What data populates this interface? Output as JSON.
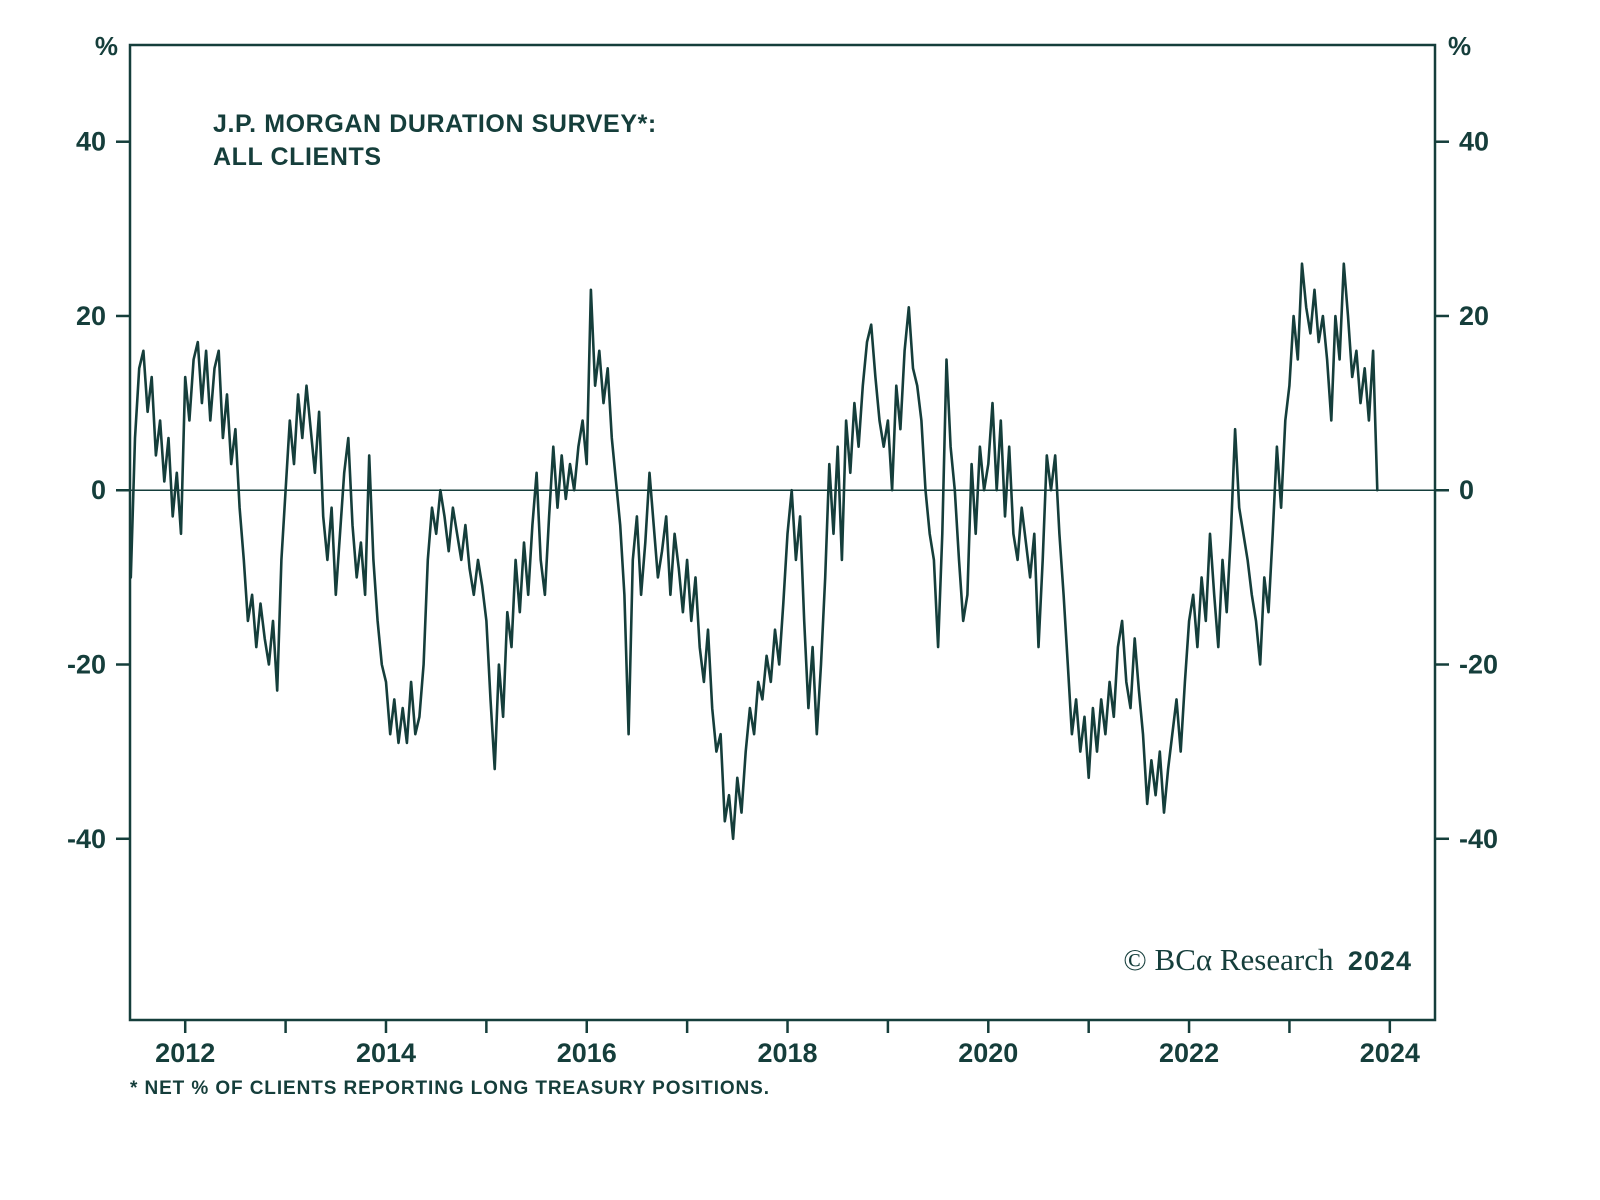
{
  "header": {
    "title_line1": "J.P. MORGAN DURATION SURVEY*:",
    "title_line2": "ALL CLIENTS"
  },
  "axes": {
    "unit_left": "%",
    "unit_right": "%"
  },
  "copyright": {
    "text": "© BCα Research",
    "year": "2024"
  },
  "footnote": "* NET % OF CLIENTS REPORTING LONG TREASURY POSITIONS.",
  "chart_data": {
    "type": "line",
    "title": "J.P. MORGAN DURATION SURVEY*: ALL CLIENTS",
    "xlabel": "",
    "ylabel": "%",
    "grid": false,
    "legend": "none",
    "zero_line": true,
    "line_color": "#153e3b",
    "xlim": [
      2011.45,
      2024.45
    ],
    "ylim": [
      -60.8,
      51.1
    ],
    "yticks": [
      40,
      20,
      0,
      -20,
      -40
    ],
    "xtick_marks": [
      2012,
      2013,
      2014,
      2015,
      2016,
      2017,
      2018,
      2019,
      2020,
      2021,
      2022,
      2023,
      2024
    ],
    "xtick_labels": [
      2012,
      2014,
      2016,
      2018,
      2020,
      2022,
      2024
    ],
    "series": [
      {
        "name": "All clients net % reporting long treasury positions",
        "x_start": 2011.4583,
        "x_step": 0.0416667,
        "values": [
          -10,
          6,
          14,
          16,
          9,
          13,
          4,
          8,
          1,
          6,
          -3,
          2,
          -5,
          13,
          8,
          15,
          17,
          10,
          16,
          8,
          14,
          16,
          6,
          11,
          3,
          7,
          -2,
          -8,
          -15,
          -12,
          -18,
          -13,
          -17,
          -20,
          -15,
          -23,
          -8,
          0,
          8,
          3,
          11,
          6,
          12,
          7,
          2,
          9,
          -3,
          -8,
          -2,
          -12,
          -5,
          2,
          6,
          -4,
          -10,
          -6,
          -12,
          4,
          -8,
          -15,
          -20,
          -22,
          -28,
          -24,
          -29,
          -25,
          -29,
          -22,
          -28,
          -26,
          -20,
          -8,
          -2,
          -5,
          0,
          -3,
          -7,
          -2,
          -5,
          -8,
          -4,
          -9,
          -12,
          -8,
          -11,
          -15,
          -24,
          -32,
          -20,
          -26,
          -14,
          -18,
          -8,
          -14,
          -6,
          -12,
          -4,
          2,
          -8,
          -12,
          -3,
          5,
          -2,
          4,
          -1,
          3,
          0,
          5,
          8,
          3,
          23,
          12,
          16,
          10,
          14,
          6,
          1,
          -4,
          -12,
          -28,
          -8,
          -3,
          -12,
          -6,
          2,
          -4,
          -10,
          -7,
          -3,
          -12,
          -5,
          -9,
          -14,
          -8,
          -15,
          -10,
          -18,
          -22,
          -16,
          -25,
          -30,
          -28,
          -38,
          -35,
          -40,
          -33,
          -37,
          -30,
          -25,
          -28,
          -22,
          -24,
          -19,
          -22,
          -16,
          -20,
          -13,
          -5,
          0,
          -8,
          -3,
          -15,
          -25,
          -18,
          -28,
          -20,
          -10,
          3,
          -5,
          5,
          -8,
          8,
          2,
          10,
          5,
          12,
          17,
          19,
          13,
          8,
          5,
          8,
          0,
          12,
          7,
          16,
          21,
          14,
          12,
          8,
          0,
          -5,
          -8,
          -18,
          -5,
          15,
          5,
          0,
          -8,
          -15,
          -12,
          3,
          -5,
          5,
          0,
          3,
          10,
          0,
          8,
          -3,
          5,
          -5,
          -8,
          -2,
          -6,
          -10,
          -5,
          -18,
          -8,
          4,
          0,
          4,
          -5,
          -12,
          -20,
          -28,
          -24,
          -30,
          -26,
          -33,
          -25,
          -30,
          -24,
          -28,
          -22,
          -26,
          -18,
          -15,
          -22,
          -25,
          -17,
          -23,
          -28,
          -36,
          -31,
          -35,
          -30,
          -37,
          -32,
          -28,
          -24,
          -30,
          -22,
          -15,
          -12,
          -18,
          -10,
          -15,
          -5,
          -12,
          -18,
          -8,
          -14,
          -5,
          7,
          -2,
          -5,
          -8,
          -12,
          -15,
          -20,
          -10,
          -14,
          -5,
          5,
          -2,
          8,
          12,
          20,
          15,
          26,
          21,
          18,
          23,
          17,
          20,
          15,
          8,
          20,
          15,
          26,
          20,
          13,
          16,
          10,
          14,
          8,
          16,
          0
        ]
      }
    ]
  }
}
